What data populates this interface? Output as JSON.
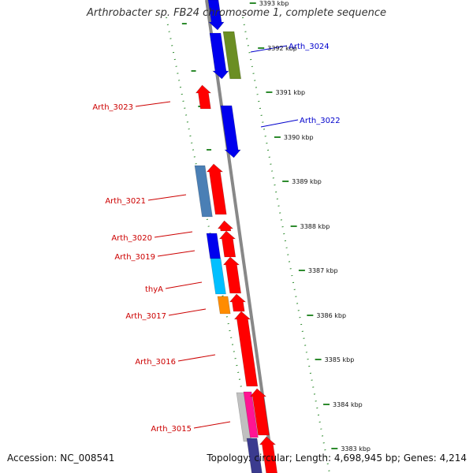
{
  "title": "Arthrobacter sp. FB24 chromosome 1, complete sequence",
  "accession": "Accession: NC_008541",
  "topology": "Topology: circular; Length: 4,698,945 bp; Genes: 4,214",
  "scale_labels": [
    "3393 kbp",
    "3392 kbp",
    "3391 kbp",
    "3390 kbp",
    "3389 kbp",
    "3388 kbp",
    "3387 kbp",
    "3386 kbp",
    "3385 kbp",
    "3384 kbp",
    "3383 kbp"
  ],
  "gene_labels_left": [
    {
      "text": "Arth_3023",
      "color": "#cc0000"
    },
    {
      "text": "Arth_3021",
      "color": "#cc0000"
    },
    {
      "text": "Arth_3020",
      "color": "#cc0000"
    },
    {
      "text": "Arth_3019",
      "color": "#cc0000"
    },
    {
      "text": "thyA",
      "color": "#cc0000"
    },
    {
      "text": "Arth_3017",
      "color": "#cc0000"
    },
    {
      "text": "Arth_3016",
      "color": "#cc0000"
    },
    {
      "text": "Arth_3015",
      "color": "#cc0000"
    }
  ],
  "gene_labels_right": [
    {
      "text": "Arth_3024",
      "color": "#0000cc"
    },
    {
      "text": "Arth_3022",
      "color": "#0000cc"
    }
  ],
  "colors": {
    "backbone": "#888888",
    "ruler": "#2e8b2e",
    "forward": "#ff0000",
    "reverse": "#0000ee",
    "olive": "#6b8e23",
    "steel": "#4a7fb5",
    "cyan": "#00bfff",
    "orange": "#ff8c00",
    "pink": "#ff1493",
    "silver": "#c0c0c0",
    "navy": "#3b3b8f"
  }
}
